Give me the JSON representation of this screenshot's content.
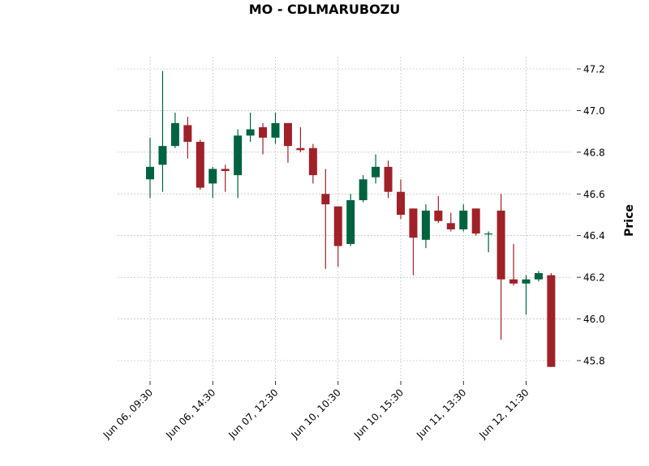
{
  "chart_data": {
    "type": "candlestick",
    "title": "MO - CDLMARUBOZU",
    "ylabel": "Price",
    "xlabel": "",
    "ylim": [
      45.7,
      47.25
    ],
    "yticks": [
      45.8,
      46.0,
      46.2,
      46.4,
      46.6,
      46.8,
      47.0,
      47.2
    ],
    "ytick_labels": [
      "45.8",
      "46.0",
      "46.2",
      "46.4",
      "46.6",
      "46.8",
      "47.0",
      "47.2"
    ],
    "xtick_labels": [
      "Jun 06, 09:30",
      "Jun 06, 14:30",
      "Jun 07, 12:30",
      "Jun 10, 10:30",
      "Jun 10, 15:30",
      "Jun 11, 13:30",
      "Jun 12, 11:30"
    ],
    "xtick_indices": [
      0,
      5,
      10,
      15,
      20,
      25,
      30
    ],
    "grid": true,
    "up_color": "#006340",
    "down_color": "#a02128",
    "candles": [
      {
        "o": 46.67,
        "h": 46.87,
        "l": 46.58,
        "c": 46.73
      },
      {
        "o": 46.74,
        "h": 47.19,
        "l": 46.61,
        "c": 46.83
      },
      {
        "o": 46.83,
        "h": 46.99,
        "l": 46.82,
        "c": 46.94
      },
      {
        "o": 46.93,
        "h": 46.97,
        "l": 46.77,
        "c": 46.85
      },
      {
        "o": 46.85,
        "h": 46.86,
        "l": 46.62,
        "c": 46.63
      },
      {
        "o": 46.65,
        "h": 46.73,
        "l": 46.58,
        "c": 46.72
      },
      {
        "o": 46.72,
        "h": 46.74,
        "l": 46.61,
        "c": 46.71
      },
      {
        "o": 46.69,
        "h": 46.91,
        "l": 46.58,
        "c": 46.88
      },
      {
        "o": 46.88,
        "h": 46.99,
        "l": 46.85,
        "c": 46.91
      },
      {
        "o": 46.92,
        "h": 46.94,
        "l": 46.79,
        "c": 46.87
      },
      {
        "o": 46.87,
        "h": 46.99,
        "l": 46.84,
        "c": 46.94
      },
      {
        "o": 46.94,
        "h": 46.94,
        "l": 46.75,
        "c": 46.83
      },
      {
        "o": 46.82,
        "h": 46.92,
        "l": 46.8,
        "c": 46.81
      },
      {
        "o": 46.82,
        "h": 46.84,
        "l": 46.65,
        "c": 46.69
      },
      {
        "o": 46.6,
        "h": 46.72,
        "l": 46.24,
        "c": 46.55
      },
      {
        "o": 46.54,
        "h": 46.54,
        "l": 46.25,
        "c": 46.35
      },
      {
        "o": 46.36,
        "h": 46.6,
        "l": 46.35,
        "c": 46.57
      },
      {
        "o": 46.57,
        "h": 46.69,
        "l": 46.56,
        "c": 46.67
      },
      {
        "o": 46.68,
        "h": 46.79,
        "l": 46.65,
        "c": 46.73
      },
      {
        "o": 46.73,
        "h": 46.76,
        "l": 46.58,
        "c": 46.61
      },
      {
        "o": 46.61,
        "h": 46.67,
        "l": 46.48,
        "c": 46.5
      },
      {
        "o": 46.53,
        "h": 46.53,
        "l": 46.21,
        "c": 46.39
      },
      {
        "o": 46.38,
        "h": 46.55,
        "l": 46.34,
        "c": 46.52
      },
      {
        "o": 46.52,
        "h": 46.59,
        "l": 46.46,
        "c": 46.47
      },
      {
        "o": 46.46,
        "h": 46.51,
        "l": 46.42,
        "c": 46.43
      },
      {
        "o": 46.43,
        "h": 46.55,
        "l": 46.42,
        "c": 46.52
      },
      {
        "o": 46.53,
        "h": 46.53,
        "l": 46.4,
        "c": 46.41
      },
      {
        "o": 46.41,
        "h": 46.42,
        "l": 46.32,
        "c": 46.41
      },
      {
        "o": 46.52,
        "h": 46.6,
        "l": 45.9,
        "c": 46.19
      },
      {
        "o": 46.19,
        "h": 46.36,
        "l": 46.16,
        "c": 46.17
      },
      {
        "o": 46.17,
        "h": 46.21,
        "l": 46.02,
        "c": 46.19
      },
      {
        "o": 46.19,
        "h": 46.23,
        "l": 46.18,
        "c": 46.22
      },
      {
        "o": 46.21,
        "h": 46.22,
        "l": 45.77,
        "c": 45.77
      }
    ]
  }
}
